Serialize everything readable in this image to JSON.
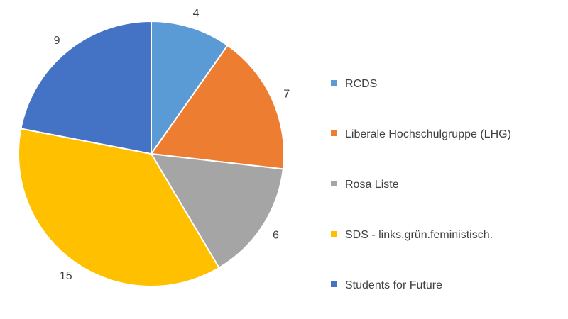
{
  "chart_data": {
    "type": "pie",
    "title": "",
    "categories": [
      "RCDS",
      "Liberale Hochschulgruppe (LHG)",
      "Rosa Liste",
      "SDS - links.grün.feministisch.",
      "Students for Future"
    ],
    "values": [
      4,
      7,
      6,
      15,
      9
    ],
    "value_labels": [
      "4",
      "7",
      "6",
      "15",
      "9"
    ],
    "colors": [
      "#5B9BD5",
      "#ED7D31",
      "#A5A5A5",
      "#FFC000",
      "#4472C4"
    ],
    "legend_position": "right"
  }
}
